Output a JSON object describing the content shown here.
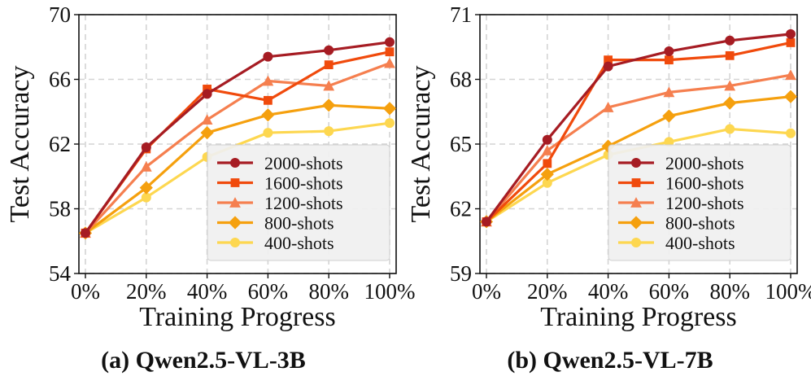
{
  "chart_data": [
    {
      "type": "line",
      "title": "",
      "caption": "(a) Qwen2.5-VL-3B",
      "xlabel": "Training Progress",
      "ylabel": "Test Accuracy",
      "categories": [
        "0%",
        "20%",
        "40%",
        "60%",
        "80%",
        "100%"
      ],
      "ylim": [
        54,
        70
      ],
      "yticks": [
        54,
        58,
        62,
        66,
        70
      ],
      "grid": true,
      "legend_position": "bottom-right",
      "series": [
        {
          "name": "2000-shots",
          "color": "#a61c23",
          "marker": "circle",
          "values": [
            56.5,
            61.8,
            65.1,
            67.4,
            67.8,
            68.3
          ]
        },
        {
          "name": "1600-shots",
          "color": "#f04a0c",
          "marker": "square",
          "values": [
            56.5,
            61.7,
            65.4,
            64.7,
            66.9,
            67.7
          ]
        },
        {
          "name": "1200-shots",
          "color": "#f57f4f",
          "marker": "triangle",
          "values": [
            56.5,
            60.6,
            63.5,
            65.9,
            65.6,
            67.0
          ]
        },
        {
          "name": "800-shots",
          "color": "#f5a00e",
          "marker": "diamond",
          "values": [
            56.5,
            59.3,
            62.7,
            63.8,
            64.4,
            64.2
          ]
        },
        {
          "name": "400-shots",
          "color": "#fdd750",
          "marker": "circle",
          "values": [
            56.5,
            58.7,
            61.2,
            62.7,
            62.8,
            63.3
          ]
        }
      ]
    },
    {
      "type": "line",
      "title": "",
      "caption": "(b) Qwen2.5-VL-7B",
      "xlabel": "Training Progress",
      "ylabel": "Test Accuracy",
      "categories": [
        "0%",
        "20%",
        "40%",
        "60%",
        "80%",
        "100%"
      ],
      "ylim": [
        59,
        71
      ],
      "yticks": [
        59,
        62,
        65,
        68,
        71
      ],
      "grid": true,
      "legend_position": "bottom-right",
      "series": [
        {
          "name": "2000-shots",
          "color": "#a61c23",
          "marker": "circle",
          "values": [
            61.4,
            65.2,
            68.6,
            69.3,
            69.8,
            70.1
          ]
        },
        {
          "name": "1600-shots",
          "color": "#f04a0c",
          "marker": "square",
          "values": [
            61.4,
            64.1,
            68.9,
            68.9,
            69.1,
            69.7
          ]
        },
        {
          "name": "1200-shots",
          "color": "#f57f4f",
          "marker": "triangle",
          "values": [
            61.4,
            64.7,
            66.7,
            67.4,
            67.7,
            68.2
          ]
        },
        {
          "name": "800-shots",
          "color": "#f5a00e",
          "marker": "diamond",
          "values": [
            61.4,
            63.6,
            64.9,
            66.3,
            66.9,
            67.2
          ]
        },
        {
          "name": "400-shots",
          "color": "#fdd750",
          "marker": "circle",
          "values": [
            61.4,
            63.2,
            64.5,
            65.1,
            65.7,
            65.5
          ]
        }
      ]
    }
  ]
}
